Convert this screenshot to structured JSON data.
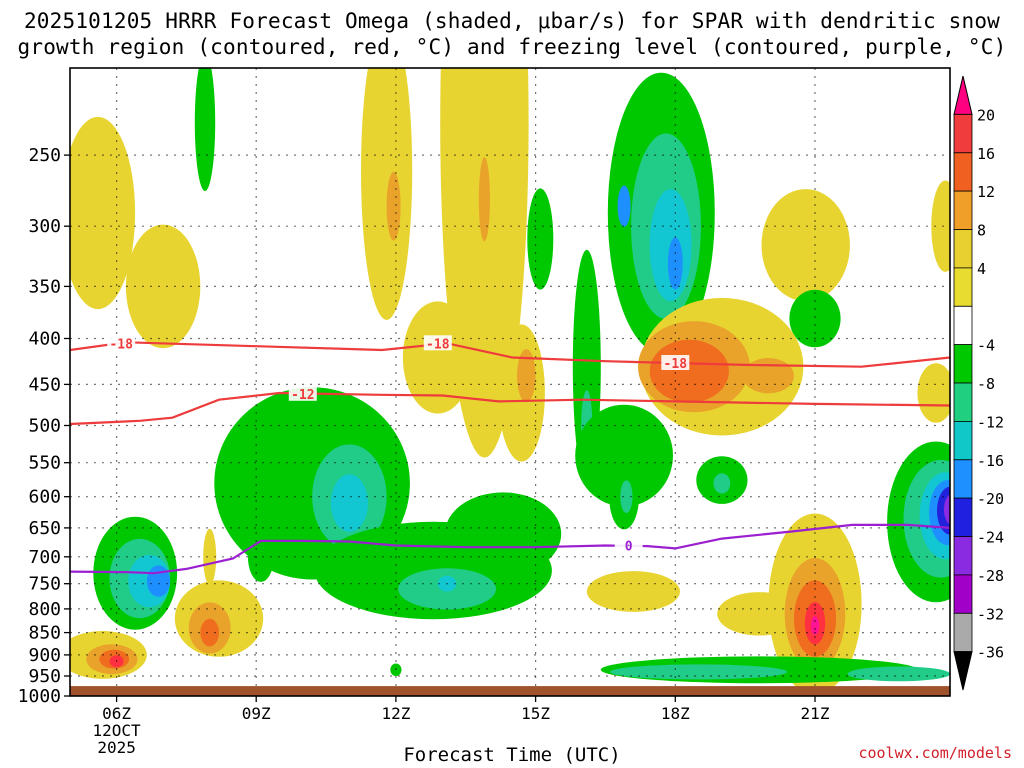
{
  "header": {
    "title_line1": "2025101205 HRRR Forecast Omega (shaded, μbar/s) for SPAR with dendritic snow",
    "title_line2": "growth region (contoured, red, °C) and freezing level (contoured, purple, °C)"
  },
  "footer": {
    "credit": "coolwx.com/models"
  },
  "chart_data": {
    "type": "heatmap",
    "title": "2025101205 HRRR Forecast Omega (shaded, μbar/s) for SPAR with dendritic snow growth region (contoured, red, °C) and freezing level (contoured, purple, °C)",
    "xlabel": "Forecast Time (UTC)",
    "ylabel": "",
    "xlim": [
      5,
      23.9
    ],
    "ylim": [
      1000,
      200
    ],
    "x_ticks": [
      {
        "value": 6,
        "label": "06Z",
        "sub1": "12OCT",
        "sub2": "2025"
      },
      {
        "value": 9,
        "label": "09Z"
      },
      {
        "value": 12,
        "label": "12Z"
      },
      {
        "value": 15,
        "label": "15Z"
      },
      {
        "value": 18,
        "label": "18Z"
      },
      {
        "value": 21,
        "label": "21Z"
      }
    ],
    "y_ticks": [
      250,
      300,
      350,
      400,
      450,
      500,
      550,
      600,
      650,
      700,
      750,
      800,
      850,
      900,
      950,
      1000
    ],
    "colorbar": {
      "labels": [
        "20",
        "16",
        "12",
        "8",
        "4",
        "-4",
        "-8",
        "-12",
        "-16",
        "-20",
        "-24",
        "-28",
        "-32",
        "-36"
      ],
      "colors": [
        "#ff0080",
        "#f03c3c",
        "#f06020",
        "#f0a028",
        "#e8d030",
        "#e8dc30",
        "#ffffff",
        "#00c800",
        "#20d080",
        "#10c8c8",
        "#1e90ff",
        "#2020e0",
        "#8a2be2",
        "#a000c8",
        "#aaaaaa",
        "#000000"
      ]
    },
    "ground_pressure": 975,
    "omega_cells": [
      {
        "x": 5.6,
        "p": 290,
        "rx": 0.8,
        "rp": 70,
        "value": 5
      },
      {
        "x": 7.0,
        "p": 350,
        "rx": 0.8,
        "rp": 55,
        "value": 5
      },
      {
        "x": 7.9,
        "p": 230,
        "rx": 0.22,
        "rp": 40,
        "value": -6
      },
      {
        "x": 11.8,
        "p": 260,
        "rx": 0.55,
        "rp": 95,
        "value": 5
      },
      {
        "x": 11.95,
        "p": 285,
        "rx": 0.15,
        "rp": 25,
        "value": 9
      },
      {
        "x": 13.9,
        "p": 230,
        "rx": 0.95,
        "rp": 160,
        "value": 5
      },
      {
        "x": 13.9,
        "p": 280,
        "rx": 0.12,
        "rp": 30,
        "value": 9
      },
      {
        "x": 12.9,
        "p": 420,
        "rx": 0.75,
        "rp": 60,
        "value": 5
      },
      {
        "x": 14.7,
        "p": 460,
        "rx": 0.5,
        "rp": 80,
        "value": 5
      },
      {
        "x": 14.8,
        "p": 440,
        "rx": 0.2,
        "rp": 30,
        "value": 9
      },
      {
        "x": 15.1,
        "p": 310,
        "rx": 0.28,
        "rp": 40,
        "value": -6
      },
      {
        "x": 17.7,
        "p": 290,
        "rx": 1.15,
        "rp": 100,
        "value": -6
      },
      {
        "x": 17.8,
        "p": 300,
        "rx": 0.75,
        "rp": 70,
        "value": -10
      },
      {
        "x": 17.9,
        "p": 315,
        "rx": 0.45,
        "rp": 45,
        "value": -14
      },
      {
        "x": 18.0,
        "p": 330,
        "rx": 0.16,
        "rp": 22,
        "value": -18
      },
      {
        "x": 16.9,
        "p": 285,
        "rx": 0.14,
        "rp": 15,
        "value": -18
      },
      {
        "x": 20.8,
        "p": 315,
        "rx": 0.95,
        "rp": 45,
        "value": 5
      },
      {
        "x": 21.0,
        "p": 380,
        "rx": 0.55,
        "rp": 28,
        "value": -6
      },
      {
        "x": 23.8,
        "p": 300,
        "rx": 0.3,
        "rp": 35,
        "value": 5
      },
      {
        "x": 19.0,
        "p": 430,
        "rx": 1.75,
        "rp": 75,
        "value": 5
      },
      {
        "x": 18.4,
        "p": 430,
        "rx": 1.2,
        "rp": 50,
        "value": 9
      },
      {
        "x": 18.3,
        "p": 435,
        "rx": 0.85,
        "rp": 35,
        "value": 13
      },
      {
        "x": 20.0,
        "p": 440,
        "rx": 0.55,
        "rp": 20,
        "value": 9
      },
      {
        "x": 23.6,
        "p": 460,
        "rx": 0.4,
        "rp": 35,
        "value": 5
      },
      {
        "x": 16.1,
        "p": 430,
        "rx": 0.3,
        "rp": 125,
        "value": -6
      },
      {
        "x": 16.1,
        "p": 500,
        "rx": 0.12,
        "rp": 45,
        "value": -10
      },
      {
        "x": 16.9,
        "p": 540,
        "rx": 1.05,
        "rp": 70,
        "value": -6
      },
      {
        "x": 16.9,
        "p": 600,
        "rx": 0.32,
        "rp": 50,
        "value": -6
      },
      {
        "x": 16.95,
        "p": 600,
        "rx": 0.13,
        "rp": 25,
        "value": -10
      },
      {
        "x": 19.0,
        "p": 575,
        "rx": 0.55,
        "rp": 35,
        "value": -6
      },
      {
        "x": 19.0,
        "p": 580,
        "rx": 0.18,
        "rp": 15,
        "value": -10
      },
      {
        "x": 10.2,
        "p": 580,
        "rx": 2.1,
        "rp": 140,
        "value": -6
      },
      {
        "x": 11.0,
        "p": 600,
        "rx": 0.8,
        "rp": 80,
        "value": -10
      },
      {
        "x": 11.0,
        "p": 610,
        "rx": 0.4,
        "rp": 45,
        "value": -14
      },
      {
        "x": 12.8,
        "p": 725,
        "rx": 2.55,
        "rp": 90,
        "value": -6
      },
      {
        "x": 14.3,
        "p": 660,
        "rx": 1.25,
        "rp": 70,
        "value": -6
      },
      {
        "x": 13.1,
        "p": 760,
        "rx": 1.05,
        "rp": 40,
        "value": -10
      },
      {
        "x": 13.1,
        "p": 750,
        "rx": 0.2,
        "rp": 15,
        "value": -14
      },
      {
        "x": 9.1,
        "p": 700,
        "rx": 0.28,
        "rp": 45,
        "value": -6
      },
      {
        "x": 12.0,
        "p": 935,
        "rx": 0.12,
        "rp": 15,
        "value": -6
      },
      {
        "x": 6.4,
        "p": 730,
        "rx": 0.9,
        "rp": 105,
        "value": -6
      },
      {
        "x": 6.5,
        "p": 740,
        "rx": 0.65,
        "rp": 75,
        "value": -10
      },
      {
        "x": 6.7,
        "p": 745,
        "rx": 0.45,
        "rp": 50,
        "value": -14
      },
      {
        "x": 6.9,
        "p": 745,
        "rx": 0.25,
        "rp": 30,
        "value": -18
      },
      {
        "x": 5.7,
        "p": 900,
        "rx": 0.95,
        "rp": 55,
        "value": 5
      },
      {
        "x": 5.9,
        "p": 910,
        "rx": 0.55,
        "rp": 35,
        "value": 9
      },
      {
        "x": 5.95,
        "p": 910,
        "rx": 0.32,
        "rp": 22,
        "value": 13
      },
      {
        "x": 6.0,
        "p": 915,
        "rx": 0.15,
        "rp": 14,
        "value": 17
      },
      {
        "x": 8.2,
        "p": 820,
        "rx": 0.95,
        "rp": 80,
        "value": 5
      },
      {
        "x": 8.0,
        "p": 840,
        "rx": 0.45,
        "rp": 55,
        "value": 9
      },
      {
        "x": 8.0,
        "p": 850,
        "rx": 0.2,
        "rp": 30,
        "value": 13
      },
      {
        "x": 8.0,
        "p": 700,
        "rx": 0.14,
        "rp": 50,
        "value": 5
      },
      {
        "x": 17.1,
        "p": 765,
        "rx": 1.0,
        "rp": 40,
        "value": 5
      },
      {
        "x": 19.8,
        "p": 810,
        "rx": 0.9,
        "rp": 45,
        "value": 5
      },
      {
        "x": 21.0,
        "p": 790,
        "rx": 1.0,
        "rp": 180,
        "value": 5
      },
      {
        "x": 21.0,
        "p": 810,
        "rx": 0.65,
        "rp": 115,
        "value": 9
      },
      {
        "x": 21.0,
        "p": 820,
        "rx": 0.45,
        "rp": 80,
        "value": 13
      },
      {
        "x": 21.0,
        "p": 830,
        "rx": 0.22,
        "rp": 45,
        "value": 17
      },
      {
        "x": 21.0,
        "p": 835,
        "rx": 0.09,
        "rp": 20,
        "value": 21
      },
      {
        "x": 23.6,
        "p": 640,
        "rx": 1.05,
        "rp": 130,
        "value": -6
      },
      {
        "x": 23.7,
        "p": 635,
        "rx": 0.8,
        "rp": 95,
        "value": -10
      },
      {
        "x": 23.8,
        "p": 630,
        "rx": 0.55,
        "rp": 70,
        "value": -14
      },
      {
        "x": 23.85,
        "p": 625,
        "rx": 0.4,
        "rp": 52,
        "value": -18
      },
      {
        "x": 23.9,
        "p": 622,
        "rx": 0.28,
        "rp": 38,
        "value": -22
      },
      {
        "x": 23.95,
        "p": 620,
        "rx": 0.18,
        "rp": 25,
        "value": -26
      },
      {
        "x": 24.0,
        "p": 620,
        "rx": 0.1,
        "rp": 15,
        "value": -30
      },
      {
        "x": 19.8,
        "p": 935,
        "rx": 3.4,
        "rp": 32,
        "value": -6
      },
      {
        "x": 18.5,
        "p": 940,
        "rx": 1.9,
        "rp": 18,
        "value": -10
      },
      {
        "x": 22.8,
        "p": 945,
        "rx": 1.1,
        "rp": 18,
        "value": -10
      }
    ],
    "contours": [
      {
        "name": "dgz-top",
        "label": "-18",
        "color": "#ee3b3b",
        "points": [
          [
            5,
            412
          ],
          [
            6.2,
            404
          ],
          [
            9,
            408
          ],
          [
            11.7,
            412
          ],
          [
            13.1,
            405
          ],
          [
            14.5,
            420
          ],
          [
            16.5,
            424
          ],
          [
            19.5,
            428
          ],
          [
            22,
            430
          ],
          [
            23.9,
            420
          ]
        ],
        "label_positions": [
          [
            6.1,
            405
          ],
          [
            12.9,
            405
          ],
          [
            18.0,
            426
          ]
        ]
      },
      {
        "name": "dgz-bottom",
        "label": "-12",
        "color": "#ee3b3b",
        "points": [
          [
            5,
            498
          ],
          [
            6.5,
            494
          ],
          [
            7.2,
            490
          ],
          [
            8.2,
            468
          ],
          [
            9.5,
            460
          ],
          [
            11.5,
            462
          ],
          [
            13,
            463
          ],
          [
            14.2,
            470
          ],
          [
            16,
            468
          ],
          [
            18,
            470
          ],
          [
            21,
            473
          ],
          [
            23.9,
            475
          ]
        ],
        "label_positions": [
          [
            10.0,
            461
          ]
        ]
      },
      {
        "name": "freezing-level",
        "label": "0",
        "color": "#9b1fd0",
        "points": [
          [
            5,
            727
          ],
          [
            6.2,
            728
          ],
          [
            6.8,
            730
          ],
          [
            7.5,
            722
          ],
          [
            8.5,
            703
          ],
          [
            9.1,
            672
          ],
          [
            10,
            672
          ],
          [
            11,
            673
          ],
          [
            12,
            680
          ],
          [
            13.5,
            683
          ],
          [
            15,
            683
          ],
          [
            16.5,
            680
          ],
          [
            17.4,
            681
          ],
          [
            18,
            685
          ],
          [
            19,
            668
          ],
          [
            20.5,
            656
          ],
          [
            21.8,
            645
          ],
          [
            23,
            645
          ],
          [
            23.9,
            650
          ]
        ],
        "label_positions": [
          [
            17.0,
            680
          ]
        ]
      }
    ]
  }
}
